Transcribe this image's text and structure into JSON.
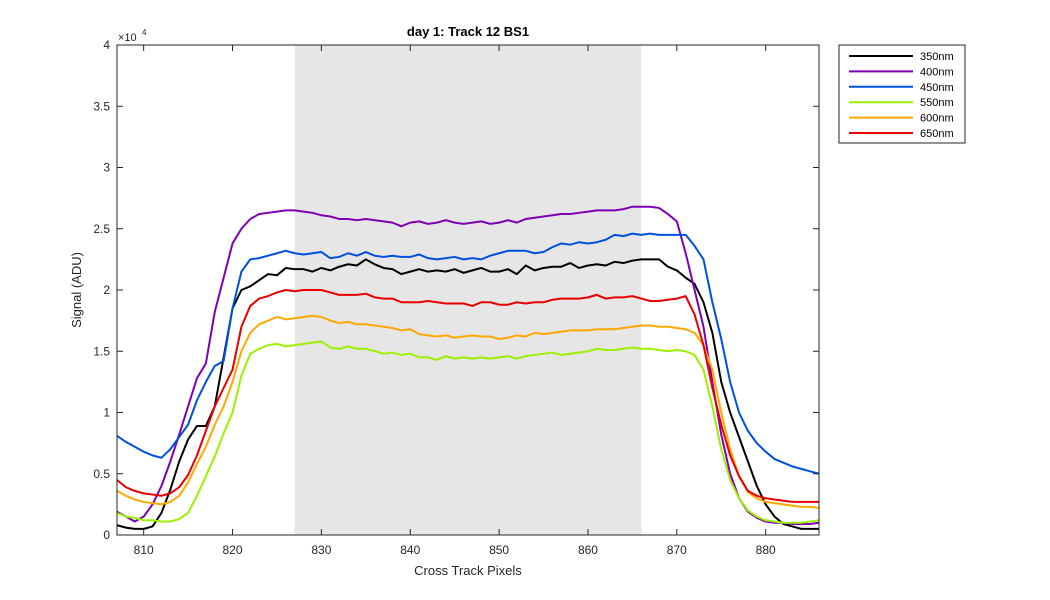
{
  "chart_data": {
    "type": "line",
    "title": "day 1: Track 12  BS1",
    "xlabel": "Cross Track Pixels",
    "ylabel": "Signal (ADU)",
    "y_exponent_label": "×10",
    "y_exponent_power": "4",
    "xlim": [
      807,
      886
    ],
    "ylim": [
      0,
      40000
    ],
    "xticks": [
      810,
      820,
      830,
      840,
      850,
      860,
      870,
      880
    ],
    "yticks": [
      0,
      5000,
      10000,
      15000,
      20000,
      25000,
      30000,
      35000,
      40000
    ],
    "ytick_labels": [
      "0",
      "0.5",
      "1",
      "1.5",
      "2",
      "2.5",
      "3",
      "3.5",
      "4"
    ],
    "shaded_region": {
      "x_start": 827,
      "x_end": 866,
      "color": "#e6e6e6"
    },
    "legend_position": "outside-top-right",
    "grid": false,
    "x": [
      807,
      808,
      809,
      810,
      811,
      812,
      813,
      814,
      815,
      816,
      817,
      818,
      819,
      820,
      821,
      822,
      823,
      824,
      825,
      826,
      827,
      828,
      829,
      830,
      831,
      832,
      833,
      834,
      835,
      836,
      837,
      838,
      839,
      840,
      841,
      842,
      843,
      844,
      845,
      846,
      847,
      848,
      849,
      850,
      851,
      852,
      853,
      854,
      855,
      856,
      857,
      858,
      859,
      860,
      861,
      862,
      863,
      864,
      865,
      866,
      867,
      868,
      869,
      870,
      871,
      872,
      873,
      874,
      875,
      876,
      877,
      878,
      879,
      880,
      881,
      882,
      883,
      884,
      885,
      886
    ],
    "series": [
      {
        "name": "350nm",
        "color": "#000000",
        "values": [
          800,
          600,
          500,
          500,
          700,
          1800,
          3700,
          6000,
          7800,
          8900,
          8900,
          10500,
          14500,
          18500,
          20000,
          20300,
          20800,
          21300,
          21200,
          21800,
          21700,
          21700,
          21500,
          21800,
          21600,
          21900,
          22100,
          22000,
          22500,
          22100,
          21800,
          21700,
          21300,
          21500,
          21700,
          21500,
          21600,
          21500,
          21700,
          21400,
          21600,
          21800,
          21500,
          21500,
          21700,
          21300,
          22000,
          21600,
          21800,
          21900,
          21900,
          22200,
          21800,
          22000,
          22100,
          22000,
          22300,
          22200,
          22400,
          22500,
          22500,
          22500,
          21900,
          21600,
          21000,
          20500,
          19000,
          16500,
          12500,
          10000,
          8000,
          6000,
          4000,
          2500,
          1500,
          900,
          700,
          500,
          500,
          500
        ]
      },
      {
        "name": "400nm",
        "color": "#7e00b5",
        "values": [
          1900,
          1500,
          1100,
          1500,
          2500,
          4000,
          6000,
          8200,
          10500,
          12800,
          14000,
          18200,
          21000,
          23800,
          25000,
          25800,
          26200,
          26300,
          26400,
          26500,
          26500,
          26400,
          26300,
          26100,
          26000,
          25800,
          25800,
          25700,
          25800,
          25700,
          25600,
          25500,
          25200,
          25500,
          25600,
          25400,
          25500,
          25700,
          25500,
          25400,
          25500,
          25600,
          25400,
          25500,
          25700,
          25500,
          25800,
          25900,
          26000,
          26100,
          26200,
          26200,
          26300,
          26400,
          26500,
          26500,
          26500,
          26600,
          26800,
          26800,
          26800,
          26700,
          26200,
          25600,
          23000,
          20000,
          17000,
          12500,
          8200,
          5000,
          3000,
          1900,
          1400,
          1100,
          1000,
          1000,
          900,
          900,
          900,
          1000
        ]
      },
      {
        "name": "450nm",
        "color": "#0050e0",
        "values": [
          8100,
          7600,
          7200,
          6800,
          6500,
          6300,
          7000,
          8000,
          9000,
          11000,
          12500,
          13800,
          14200,
          18500,
          21500,
          22500,
          22600,
          22800,
          23000,
          23200,
          23000,
          22900,
          23000,
          23100,
          22600,
          22700,
          23000,
          22800,
          23100,
          22800,
          22700,
          22800,
          22700,
          22700,
          22900,
          22600,
          22500,
          22600,
          22700,
          22500,
          22600,
          22500,
          22800,
          23000,
          23200,
          23200,
          23200,
          23000,
          23100,
          23500,
          23800,
          23700,
          23900,
          23800,
          23900,
          24100,
          24500,
          24400,
          24600,
          24500,
          24600,
          24500,
          24500,
          24500,
          24500,
          23600,
          22500,
          19000,
          16000,
          12500,
          10000,
          8500,
          7500,
          6800,
          6200,
          5900,
          5600,
          5400,
          5200,
          5000
        ]
      },
      {
        "name": "550nm",
        "color": "#9cf000",
        "values": [
          1800,
          1500,
          1400,
          1200,
          1200,
          1100,
          1100,
          1300,
          1800,
          3200,
          4800,
          6400,
          8300,
          10000,
          13000,
          14800,
          15200,
          15500,
          15600,
          15400,
          15500,
          15600,
          15700,
          15800,
          15300,
          15200,
          15400,
          15200,
          15200,
          15000,
          14800,
          14900,
          14700,
          14800,
          14500,
          14500,
          14300,
          14600,
          14400,
          14500,
          14400,
          14500,
          14400,
          14500,
          14600,
          14400,
          14600,
          14700,
          14800,
          14900,
          14700,
          14800,
          14900,
          15000,
          15200,
          15100,
          15100,
          15200,
          15300,
          15200,
          15200,
          15100,
          15000,
          15100,
          15000,
          14700,
          13500,
          10500,
          7000,
          4500,
          3000,
          2000,
          1500,
          1200,
          1100,
          1000,
          1000,
          1000,
          1100,
          1200
        ]
      },
      {
        "name": "600nm",
        "color": "#ffa800",
        "values": [
          3600,
          3200,
          2900,
          2700,
          2600,
          2500,
          2700,
          3200,
          4300,
          5800,
          7200,
          9000,
          10500,
          12500,
          15000,
          16500,
          17200,
          17500,
          17800,
          17600,
          17700,
          17800,
          17900,
          17800,
          17500,
          17300,
          17400,
          17200,
          17200,
          17100,
          17000,
          16900,
          16700,
          16800,
          16400,
          16300,
          16200,
          16300,
          16100,
          16200,
          16300,
          16200,
          16200,
          16000,
          16100,
          16300,
          16200,
          16500,
          16400,
          16500,
          16600,
          16700,
          16700,
          16700,
          16800,
          16800,
          16800,
          16900,
          17000,
          17100,
          17100,
          17000,
          17000,
          16900,
          16800,
          16500,
          15500,
          13500,
          10000,
          7000,
          4800,
          3500,
          3000,
          2700,
          2600,
          2500,
          2400,
          2300,
          2300,
          2200
        ]
      },
      {
        "name": "650nm",
        "color": "#e80000",
        "values": [
          4500,
          3900,
          3600,
          3400,
          3300,
          3200,
          3400,
          3900,
          4900,
          6500,
          8500,
          10500,
          12000,
          13500,
          17000,
          18700,
          19300,
          19500,
          19800,
          20000,
          19900,
          20000,
          20000,
          20000,
          19800,
          19600,
          19600,
          19600,
          19700,
          19400,
          19300,
          19300,
          19000,
          19000,
          19000,
          19100,
          19000,
          18900,
          18900,
          18900,
          18700,
          19000,
          19000,
          18800,
          18800,
          19000,
          18900,
          19000,
          19000,
          19200,
          19300,
          19300,
          19300,
          19400,
          19600,
          19300,
          19400,
          19400,
          19500,
          19300,
          19100,
          19100,
          19200,
          19300,
          19500,
          18000,
          15500,
          12000,
          9000,
          6500,
          4800,
          3600,
          3200,
          3000,
          2900,
          2800,
          2700,
          2700,
          2700,
          2700
        ]
      }
    ]
  }
}
